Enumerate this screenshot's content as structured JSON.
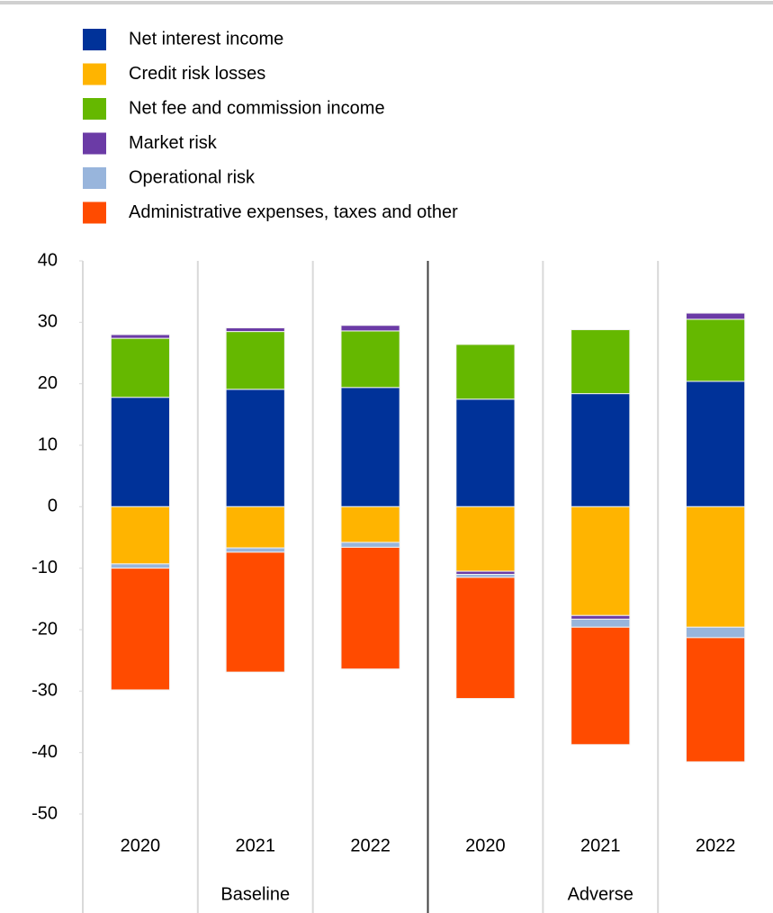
{
  "chart_data": {
    "type": "bar",
    "stacked": true,
    "categories": [
      "2020",
      "2021",
      "2022",
      "2020",
      "2021",
      "2022"
    ],
    "groups": [
      "Baseline",
      "Adverse"
    ],
    "series": [
      {
        "name": "Net interest income",
        "color": "#003299",
        "values": [
          17.8,
          19.1,
          19.4,
          17.5,
          18.4,
          20.4
        ]
      },
      {
        "name": "Credit risk losses",
        "color": "#ffb400",
        "values": [
          -9.3,
          -6.7,
          -5.8,
          -10.5,
          -17.7,
          -19.6
        ]
      },
      {
        "name": "Net fee and commission income",
        "color": "#65b800",
        "values": [
          9.6,
          9.4,
          9.2,
          8.9,
          10.4,
          10.1
        ]
      },
      {
        "name": "Market risk",
        "color": "#6b3ba6",
        "values": [
          0.6,
          0.6,
          0.9,
          -0.5,
          -0.6,
          1.0
        ]
      },
      {
        "name": "Operational  risk",
        "color": "#98b5dc",
        "values": [
          -0.7,
          -0.7,
          -0.8,
          -0.5,
          -1.3,
          -1.7
        ]
      },
      {
        "name": "Administrative expenses,  taxes and other",
        "color": "#ff4b00",
        "values": [
          -19.8,
          -19.5,
          -19.8,
          -19.7,
          -19.1,
          -20.2
        ]
      }
    ],
    "ylim": [
      -50,
      40
    ],
    "yticks": [
      -50,
      -40,
      -30,
      -20,
      -10,
      0,
      10,
      20,
      30,
      40
    ]
  }
}
